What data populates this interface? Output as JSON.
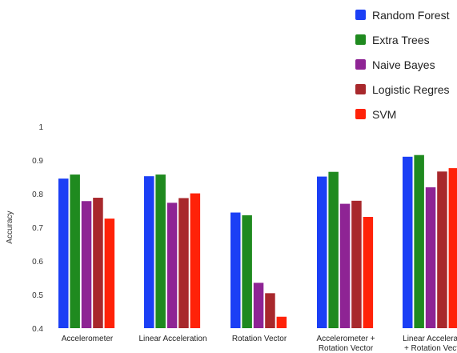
{
  "chart_data": {
    "type": "bar",
    "ylabel": "Accuracy",
    "ylim": [
      0.4,
      1.0
    ],
    "yticks": [
      "0.4",
      "0.5",
      "0.6",
      "0.7",
      "0.8",
      "0.9",
      "1"
    ],
    "grid": false,
    "legend_position": "top-right",
    "categories": [
      [
        "Accelerometer"
      ],
      [
        "Linear Acceleration"
      ],
      [
        "Rotation Vector"
      ],
      [
        "Accelerometer +",
        "Rotation Vector"
      ],
      [
        "Linear Accelerat",
        "+ Rotation Vect"
      ]
    ],
    "series": [
      {
        "name": "Random Forest",
        "color": "#1b3ff5",
        "values": [
          0.845,
          0.852,
          0.744,
          0.851,
          0.91
        ]
      },
      {
        "name": "Extra Trees",
        "color": "#1f8a1f",
        "values": [
          0.857,
          0.857,
          0.736,
          0.865,
          0.915
        ]
      },
      {
        "name": "Naive Bayes",
        "color": "#8e2494",
        "values": [
          0.778,
          0.773,
          0.535,
          0.77,
          0.819
        ]
      },
      {
        "name": "Logistic Regres",
        "color": "#a8282c",
        "values": [
          0.788,
          0.787,
          0.504,
          0.779,
          0.866
        ]
      },
      {
        "name": "SVM",
        "color": "#ff2208",
        "values": [
          0.726,
          0.801,
          0.434,
          0.731,
          0.876
        ]
      }
    ]
  }
}
